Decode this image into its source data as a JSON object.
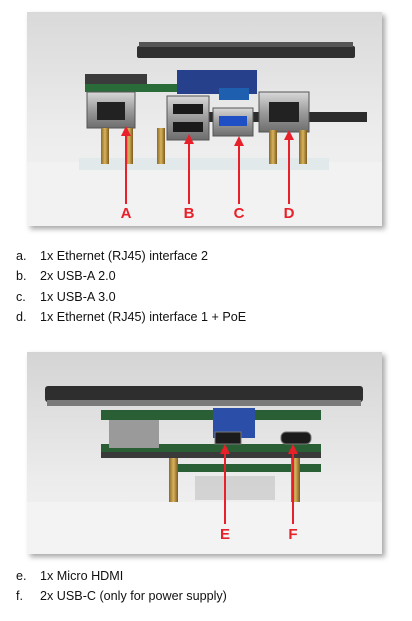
{
  "figure1": {
    "callouts": [
      "A",
      "B",
      "C",
      "D"
    ],
    "items": [
      {
        "marker": "a.",
        "text": "1x Ethernet (RJ45) interface 2"
      },
      {
        "marker": "b.",
        "text": "2x USB-A 2.0"
      },
      {
        "marker": "c.",
        "text": "1x USB-A 3.0"
      },
      {
        "marker": "d.",
        "text": "1x Ethernet (RJ45) interface 1 + PoE"
      }
    ]
  },
  "figure2": {
    "callouts": [
      "E",
      "F"
    ],
    "items": [
      {
        "marker": "e.",
        "text": "1x Micro HDMI"
      },
      {
        "marker": "f.",
        "text": "2x USB-C (only for power supply)"
      }
    ]
  },
  "colors": {
    "callout": "#e8202a",
    "photo_background": "#e6e6e6"
  }
}
